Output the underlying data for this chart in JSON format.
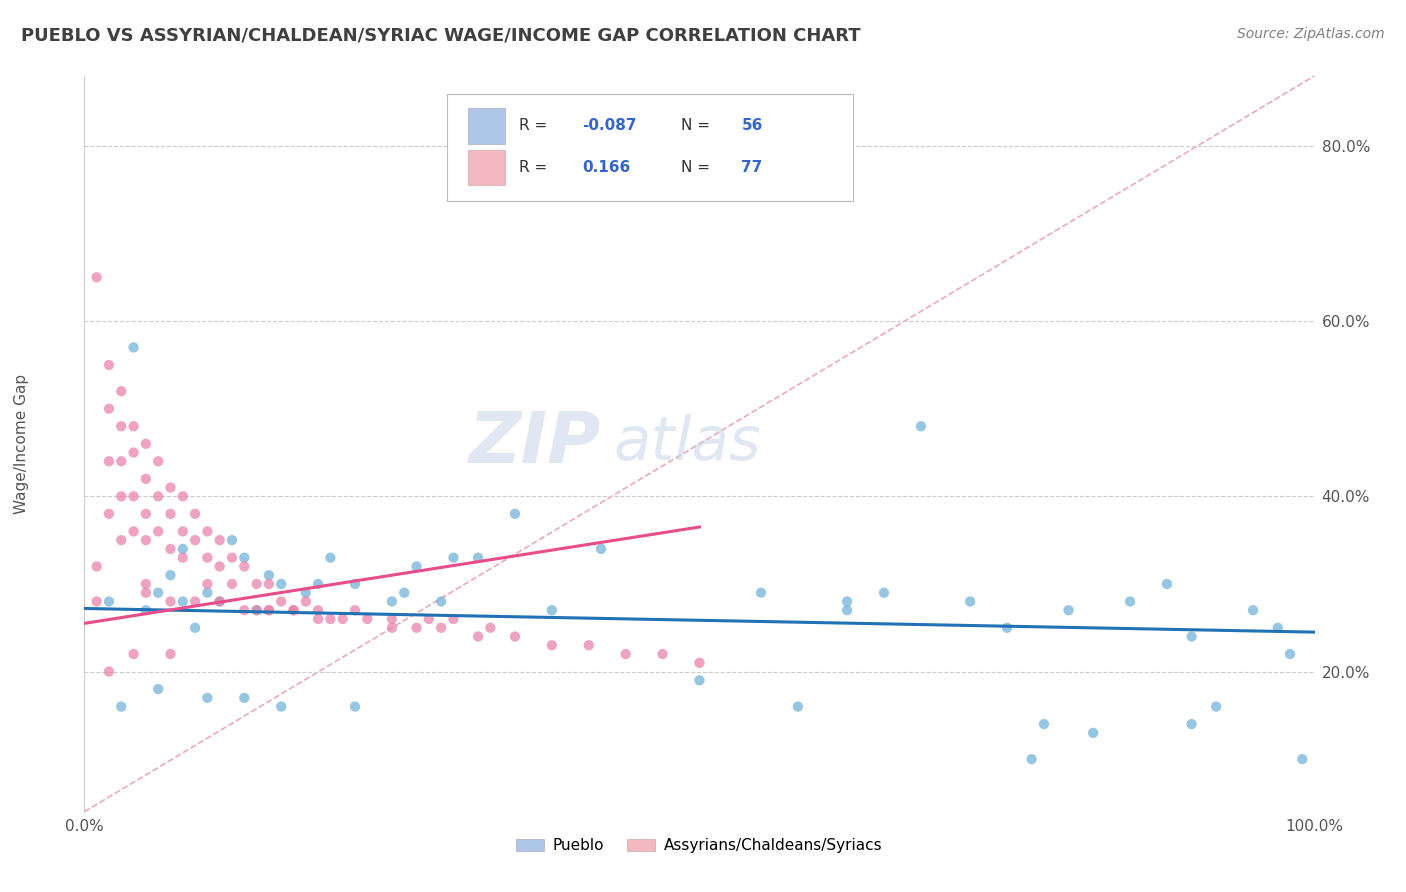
{
  "title": "PUEBLO VS ASSYRIAN/CHALDEAN/SYRIAC WAGE/INCOME GAP CORRELATION CHART",
  "source": "Source: ZipAtlas.com",
  "ylabel": "Wage/Income Gap",
  "xlim": [
    0.0,
    1.0
  ],
  "ylim": [
    0.04,
    0.88
  ],
  "xtick_positions": [
    0.0,
    1.0
  ],
  "xtick_labels": [
    "0.0%",
    "100.0%"
  ],
  "ytick_values": [
    0.2,
    0.4,
    0.6,
    0.8
  ],
  "ytick_labels": [
    "20.0%",
    "40.0%",
    "60.0%",
    "80.0%"
  ],
  "blue_scatter_x": [
    0.02,
    0.04,
    0.05,
    0.06,
    0.07,
    0.08,
    0.09,
    0.1,
    0.11,
    0.12,
    0.13,
    0.14,
    0.15,
    0.16,
    0.18,
    0.2,
    0.22,
    0.25,
    0.27,
    0.3,
    0.35,
    0.38,
    0.42,
    0.5,
    0.55,
    0.58,
    0.62,
    0.65,
    0.68,
    0.72,
    0.75,
    0.78,
    0.8,
    0.82,
    0.85,
    0.88,
    0.9,
    0.92,
    0.95,
    0.97,
    0.98,
    0.99,
    0.03,
    0.06,
    0.08,
    0.1,
    0.13,
    0.16,
    0.19,
    0.22,
    0.26,
    0.29,
    0.32,
    0.62,
    0.77,
    0.9
  ],
  "blue_scatter_y": [
    0.28,
    0.57,
    0.27,
    0.29,
    0.31,
    0.28,
    0.25,
    0.29,
    0.28,
    0.35,
    0.33,
    0.27,
    0.31,
    0.3,
    0.29,
    0.33,
    0.3,
    0.28,
    0.32,
    0.33,
    0.38,
    0.27,
    0.34,
    0.19,
    0.29,
    0.16,
    0.27,
    0.29,
    0.48,
    0.28,
    0.25,
    0.14,
    0.27,
    0.13,
    0.28,
    0.3,
    0.14,
    0.16,
    0.27,
    0.25,
    0.22,
    0.1,
    0.16,
    0.18,
    0.34,
    0.17,
    0.17,
    0.16,
    0.3,
    0.16,
    0.29,
    0.28,
    0.33,
    0.28,
    0.1,
    0.24
  ],
  "pink_scatter_x": [
    0.01,
    0.01,
    0.01,
    0.02,
    0.02,
    0.02,
    0.02,
    0.02,
    0.03,
    0.03,
    0.03,
    0.03,
    0.03,
    0.04,
    0.04,
    0.04,
    0.04,
    0.04,
    0.05,
    0.05,
    0.05,
    0.05,
    0.05,
    0.06,
    0.06,
    0.06,
    0.07,
    0.07,
    0.07,
    0.07,
    0.08,
    0.08,
    0.08,
    0.09,
    0.09,
    0.1,
    0.1,
    0.1,
    0.11,
    0.11,
    0.12,
    0.12,
    0.13,
    0.14,
    0.14,
    0.15,
    0.15,
    0.16,
    0.17,
    0.18,
    0.19,
    0.2,
    0.22,
    0.25,
    0.28,
    0.3,
    0.33,
    0.05,
    0.07,
    0.09,
    0.11,
    0.13,
    0.15,
    0.17,
    0.19,
    0.21,
    0.23,
    0.25,
    0.27,
    0.29,
    0.32,
    0.35,
    0.38,
    0.41,
    0.44,
    0.47,
    0.5
  ],
  "pink_scatter_y": [
    0.65,
    0.32,
    0.28,
    0.55,
    0.5,
    0.44,
    0.38,
    0.2,
    0.52,
    0.48,
    0.44,
    0.4,
    0.35,
    0.48,
    0.45,
    0.4,
    0.36,
    0.22,
    0.46,
    0.42,
    0.38,
    0.35,
    0.3,
    0.44,
    0.4,
    0.36,
    0.41,
    0.38,
    0.34,
    0.22,
    0.4,
    0.36,
    0.33,
    0.38,
    0.35,
    0.36,
    0.33,
    0.3,
    0.35,
    0.32,
    0.33,
    0.3,
    0.32,
    0.3,
    0.27,
    0.3,
    0.27,
    0.28,
    0.27,
    0.28,
    0.27,
    0.26,
    0.27,
    0.26,
    0.26,
    0.26,
    0.25,
    0.29,
    0.28,
    0.28,
    0.28,
    0.27,
    0.27,
    0.27,
    0.26,
    0.26,
    0.26,
    0.25,
    0.25,
    0.25,
    0.24,
    0.24,
    0.23,
    0.23,
    0.22,
    0.22,
    0.21
  ],
  "blue_line_x": [
    0.0,
    1.0
  ],
  "blue_line_y": [
    0.272,
    0.245
  ],
  "pink_line_x": [
    0.0,
    0.5
  ],
  "pink_line_y": [
    0.255,
    0.365
  ],
  "diag_line_x": [
    0.0,
    1.0
  ],
  "diag_line_y": [
    0.04,
    0.88
  ],
  "dot_color_blue": "#6baed6",
  "dot_color_pink": "#e87da8",
  "line_color_blue": "#2171b5",
  "line_color_pink": "#e84c8b",
  "diag_line_color": "#e8a0b8",
  "background_color": "#ffffff",
  "grid_color": "#cccccc",
  "title_color": "#404040",
  "source_color": "#808080",
  "legend_blue_face": "#aec6e8",
  "legend_pink_face": "#f4b8c1"
}
